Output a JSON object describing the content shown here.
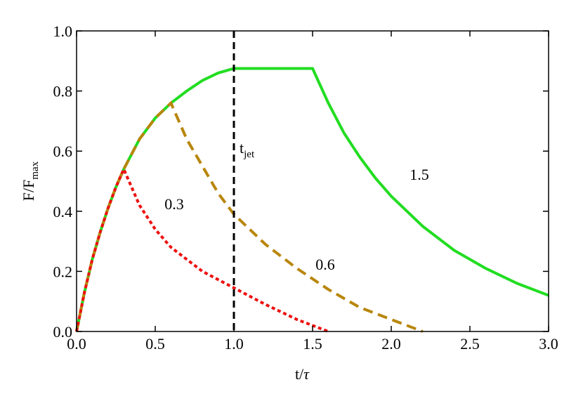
{
  "chart_data": {
    "type": "line",
    "xlabel": {
      "main": "t/",
      "sub": "τ"
    },
    "ylabel": {
      "main": "F/F",
      "sub": "max"
    },
    "xlim": [
      0,
      3
    ],
    "ylim": [
      0,
      1
    ],
    "xticks": [
      {
        "value": 0,
        "label": "0.0"
      },
      {
        "value": 0.5,
        "label": "0.5"
      },
      {
        "value": 1,
        "label": "1.0"
      },
      {
        "value": 1.5,
        "label": "1.5"
      },
      {
        "value": 2,
        "label": "2.0"
      },
      {
        "value": 2.5,
        "label": "2.5"
      },
      {
        "value": 3,
        "label": "3.0"
      }
    ],
    "yticks": [
      {
        "value": 0,
        "label": "0.0"
      },
      {
        "value": 0.2,
        "label": "0.2"
      },
      {
        "value": 0.4,
        "label": "0.4"
      },
      {
        "value": 0.6,
        "label": "0.6"
      },
      {
        "value": 0.8,
        "label": "0.8"
      },
      {
        "value": 1,
        "label": "1.0"
      }
    ],
    "series": [
      {
        "color": "#22dd22",
        "dash": "solid",
        "annotation": "1.5",
        "x": [
          0,
          0.05,
          0.1,
          0.15,
          0.2,
          0.25,
          0.3,
          0.4,
          0.5,
          0.6,
          0.7,
          0.8,
          0.9,
          1.0,
          1.5,
          1.6,
          1.7,
          1.8,
          1.9,
          2.0,
          2.2,
          2.4,
          2.6,
          2.8,
          3.0
        ],
        "values": [
          0,
          0.13,
          0.24,
          0.33,
          0.41,
          0.48,
          0.54,
          0.64,
          0.71,
          0.76,
          0.8,
          0.835,
          0.86,
          0.875,
          0.875,
          0.76,
          0.66,
          0.58,
          0.51,
          0.45,
          0.35,
          0.27,
          0.21,
          0.16,
          0.12
        ]
      },
      {
        "color": "#b8860b",
        "dash": "dashed",
        "annotation": "0.6",
        "x": [
          0,
          0.05,
          0.1,
          0.15,
          0.2,
          0.25,
          0.3,
          0.4,
          0.5,
          0.6,
          0.7,
          0.8,
          0.9,
          1.0,
          1.2,
          1.4,
          1.6,
          1.8,
          2.0,
          2.2
        ],
        "values": [
          0,
          0.13,
          0.24,
          0.33,
          0.41,
          0.48,
          0.54,
          0.64,
          0.71,
          0.76,
          0.64,
          0.55,
          0.46,
          0.39,
          0.29,
          0.21,
          0.14,
          0.08,
          0.04,
          0
        ]
      },
      {
        "color": "#ee1111",
        "dash": "dotted",
        "annotation": "0.3",
        "x": [
          0,
          0.05,
          0.1,
          0.15,
          0.2,
          0.25,
          0.3,
          0.4,
          0.5,
          0.6,
          0.8,
          1.0,
          1.2,
          1.4,
          1.6
        ],
        "values": [
          0,
          0.13,
          0.24,
          0.33,
          0.41,
          0.48,
          0.54,
          0.42,
          0.34,
          0.28,
          0.2,
          0.145,
          0.09,
          0.04,
          0
        ]
      }
    ],
    "vline": 1,
    "vline_color": "#000000",
    "vline_label": {
      "main": "t",
      "sub": "jet"
    }
  }
}
